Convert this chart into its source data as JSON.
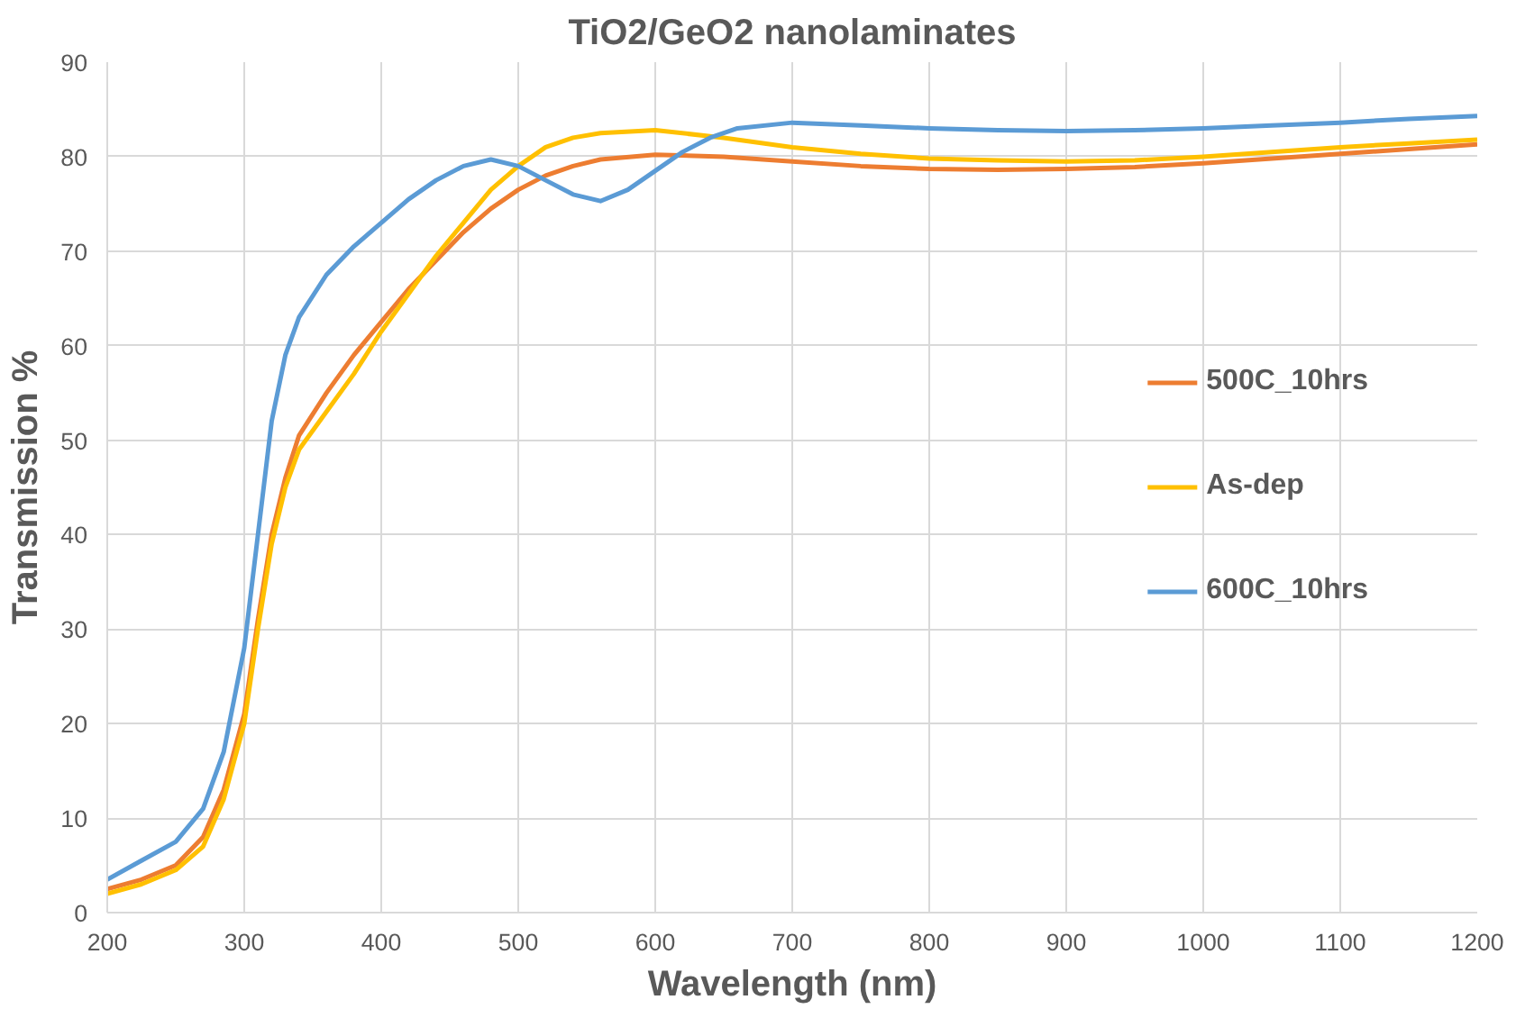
{
  "chart_data": {
    "type": "line",
    "title": "TiO2/GeO2 nanolaminates",
    "xlabel": "Wavelength (nm)",
    "ylabel": "Transmission %",
    "xlim": [
      200,
      1200
    ],
    "ylim": [
      0,
      90
    ],
    "xticks": [
      200,
      300,
      400,
      500,
      600,
      700,
      800,
      900,
      1000,
      1100,
      1200
    ],
    "yticks": [
      0,
      10,
      20,
      30,
      40,
      50,
      60,
      70,
      80,
      90
    ],
    "grid": true,
    "legend": "right",
    "marker": "none",
    "line_style": "solid",
    "series": [
      {
        "name": "500C_10hrs",
        "color": "#ed7d31",
        "x": [
          200,
          225,
          250,
          270,
          285,
          300,
          310,
          320,
          330,
          340,
          360,
          380,
          400,
          420,
          440,
          460,
          480,
          500,
          520,
          540,
          560,
          600,
          650,
          700,
          750,
          800,
          850,
          900,
          950,
          1000,
          1050,
          1100,
          1150,
          1200
        ],
        "values": [
          2.5,
          3.5,
          5,
          8,
          13,
          21,
          31,
          40,
          46,
          50.5,
          55,
          59,
          62.5,
          66,
          69,
          72,
          74.5,
          76.5,
          78,
          79,
          79.7,
          80.2,
          80,
          79.5,
          79,
          78.7,
          78.6,
          78.7,
          78.9,
          79.3,
          79.8,
          80.3,
          80.8,
          81.3
        ]
      },
      {
        "name": "As-dep",
        "color": "#ffc000",
        "x": [
          200,
          225,
          250,
          270,
          285,
          300,
          310,
          320,
          330,
          340,
          360,
          380,
          400,
          420,
          440,
          460,
          480,
          500,
          520,
          540,
          560,
          600,
          650,
          700,
          750,
          800,
          850,
          900,
          950,
          1000,
          1050,
          1100,
          1150,
          1200
        ],
        "values": [
          2,
          3,
          4.5,
          7,
          12,
          20,
          30,
          39,
          45,
          49,
          53,
          57,
          61.5,
          65.5,
          69.5,
          73,
          76.5,
          79,
          81,
          82,
          82.5,
          82.8,
          82,
          81,
          80.3,
          79.8,
          79.6,
          79.5,
          79.6,
          80,
          80.5,
          81,
          81.4,
          81.8
        ]
      },
      {
        "name": "600C_10hrs",
        "color": "#5b9bd5",
        "x": [
          200,
          225,
          250,
          270,
          285,
          300,
          310,
          320,
          330,
          340,
          360,
          380,
          400,
          420,
          440,
          460,
          480,
          500,
          520,
          540,
          560,
          580,
          600,
          620,
          640,
          660,
          700,
          750,
          800,
          850,
          900,
          950,
          1000,
          1050,
          1100,
          1150,
          1200
        ],
        "values": [
          3.5,
          5.5,
          7.5,
          11,
          17,
          28,
          40,
          52,
          59,
          63,
          67.5,
          70.5,
          73,
          75.5,
          77.5,
          79,
          79.7,
          79,
          77.5,
          76,
          75.3,
          76.5,
          78.5,
          80.5,
          82,
          83,
          83.6,
          83.3,
          83,
          82.8,
          82.7,
          82.8,
          83,
          83.3,
          83.6,
          84,
          84.3
        ]
      }
    ]
  }
}
